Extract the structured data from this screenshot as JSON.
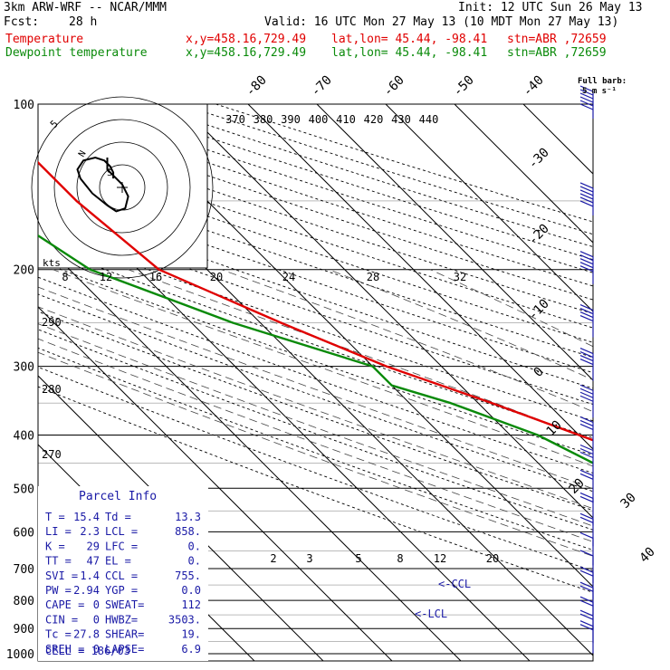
{
  "header": {
    "model": "3km ARW-WRF -- NCAR/MMM",
    "init": "Init: 12 UTC Sun 26 May 13",
    "fcst_label": "Fcst:",
    "fcst_value": "28 h",
    "valid": "Valid: 16 UTC Mon 27 May 13 (10 MDT Mon 27 May 13)",
    "temp_label": "Temperature",
    "dew_label": "Dewpoint temperature",
    "xy": "x,y=458.16,729.49",
    "latlon": "lat,lon= 45.44, -98.41",
    "stn": "stn=ABR ,72659"
  },
  "colors": {
    "temperature": "#e00000",
    "dewpoint": "#0a8a0a",
    "barbs": "#1a1aa6",
    "hodo": "#000000"
  },
  "barb_key": {
    "line1": "Full barb:",
    "line2": "5 m s⁻¹"
  },
  "parcel_info": {
    "title": "Parcel Info",
    "rows": [
      [
        "T  =",
        "15.4",
        "Td =",
        "13.3"
      ],
      [
        "LI =",
        "2.3",
        "LCL =",
        "858."
      ],
      [
        "K  =",
        "29",
        "LFC =",
        "0."
      ],
      [
        "TT =",
        "47",
        "EL  =",
        "0."
      ],
      [
        "SVI =",
        "1.4",
        "CCL =",
        "755."
      ],
      [
        "PW =",
        "2.94",
        "YGP =",
        "0.0"
      ],
      [
        "CAPE =",
        "0",
        "SWEAT=",
        "112"
      ],
      [
        "CIN  =",
        "0",
        "HWBZ=",
        "3503."
      ],
      [
        "Tc =",
        "27.8",
        "SHEAR=",
        "19."
      ],
      [
        "SREH =",
        "0",
        "LAPSE=",
        "6.9"
      ]
    ],
    "cell": "CELL = 186/03"
  },
  "chart_data": {
    "type": "skew-t",
    "pressure_levels": [
      100,
      200,
      300,
      400,
      500,
      600,
      700,
      800,
      900,
      1000
    ],
    "isotherm_labels": [
      "-80",
      "-70",
      "-60",
      "-50",
      "-40",
      "-30",
      "-20",
      "-10",
      "0",
      "10",
      "20",
      "30",
      "40"
    ],
    "theta_e_labels": [
      "370",
      "380",
      "390",
      "400",
      "410",
      "420",
      "430",
      "440"
    ],
    "theta_labels": [
      "290",
      "280",
      "270"
    ],
    "mixing_ratio_labels": [
      "2",
      "3",
      "5",
      "8",
      "12",
      "20"
    ],
    "hodograph_speed_labels": [
      "8",
      "12",
      "16",
      "20",
      "24",
      "28",
      "32"
    ],
    "hodograph_unit": "kts",
    "hodograph_ring_label": "5",
    "hodograph_tick_labels": [
      "N",
      "S"
    ],
    "annotations": [
      "<-CCL",
      "<-LCL"
    ],
    "temperature": {
      "name": "Temperature",
      "points": [
        [
          100,
          -59
        ],
        [
          150,
          -59
        ],
        [
          200,
          -57
        ],
        [
          250,
          -47
        ],
        [
          300,
          -38
        ],
        [
          350,
          -28
        ],
        [
          400,
          -20
        ],
        [
          450,
          -13
        ],
        [
          500,
          -8
        ],
        [
          550,
          -5
        ],
        [
          600,
          -1
        ],
        [
          650,
          2
        ],
        [
          700,
          4
        ],
        [
          750,
          6
        ],
        [
          800,
          8
        ],
        [
          850,
          10
        ],
        [
          880,
          13
        ],
        [
          900,
          16
        ],
        [
          925,
          15.5
        ],
        [
          940,
          15.4
        ]
      ]
    },
    "dewpoint": {
      "name": "Dewpoint temperature",
      "points": [
        [
          100,
          -75
        ],
        [
          130,
          -72
        ],
        [
          170,
          -70
        ],
        [
          200,
          -67
        ],
        [
          250,
          -54
        ],
        [
          300,
          -40
        ],
        [
          325,
          -40
        ],
        [
          350,
          -34
        ],
        [
          400,
          -26
        ],
        [
          450,
          -22
        ],
        [
          500,
          -18
        ],
        [
          550,
          -12
        ],
        [
          600,
          -6
        ],
        [
          650,
          -1
        ],
        [
          700,
          2
        ],
        [
          750,
          5
        ],
        [
          800,
          8
        ],
        [
          850,
          9
        ],
        [
          880,
          9
        ],
        [
          900,
          11
        ],
        [
          925,
          12.5
        ],
        [
          940,
          13.3
        ]
      ]
    },
    "hodograph": {
      "u": [
        -3,
        -3,
        -4,
        -6,
        -9,
        -13,
        -15,
        -14,
        -10,
        -5,
        -2,
        1,
        2,
        0,
        -3,
        -5,
        -5
      ],
      "v": [
        3,
        5,
        7,
        9,
        10,
        9,
        6,
        3,
        -2,
        -6,
        -8,
        -7,
        -3,
        1,
        4,
        6,
        10
      ]
    },
    "wind_barbs": {
      "pressures": [
        100,
        150,
        200,
        250,
        300,
        350,
        400,
        450,
        500,
        550,
        600,
        650,
        700,
        750,
        800,
        850,
        900,
        940
      ],
      "speed_ms": [
        30,
        28,
        25,
        22,
        20,
        18,
        15,
        14,
        12,
        10,
        8,
        7,
        6,
        8,
        10,
        12,
        10,
        8
      ]
    }
  }
}
